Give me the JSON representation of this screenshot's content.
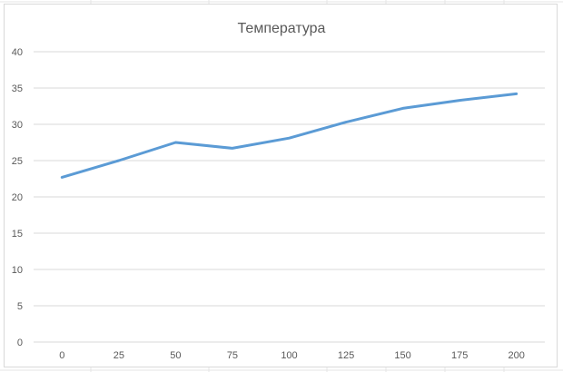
{
  "chart_data": {
    "type": "line",
    "title": "Температура",
    "xlabel": "",
    "ylabel": "",
    "x": [
      0,
      25,
      50,
      75,
      100,
      125,
      150,
      175,
      200
    ],
    "series": [
      {
        "values": [
          22.7,
          25.0,
          27.5,
          26.7,
          28.1,
          30.3,
          32.2,
          33.3,
          34.2
        ],
        "color": "#5b9bd5"
      }
    ],
    "ylim": [
      0,
      40
    ],
    "y_ticks": [
      0,
      5,
      10,
      15,
      20,
      25,
      30,
      35,
      40
    ],
    "x_tick_labels": [
      "0",
      "25",
      "50",
      "75",
      "100",
      "125",
      "150",
      "175",
      "200"
    ],
    "grid": true,
    "legend": "none",
    "colors": {
      "gridline": "#d9d9d9",
      "text": "#595959",
      "line": "#5b9bd5"
    }
  }
}
